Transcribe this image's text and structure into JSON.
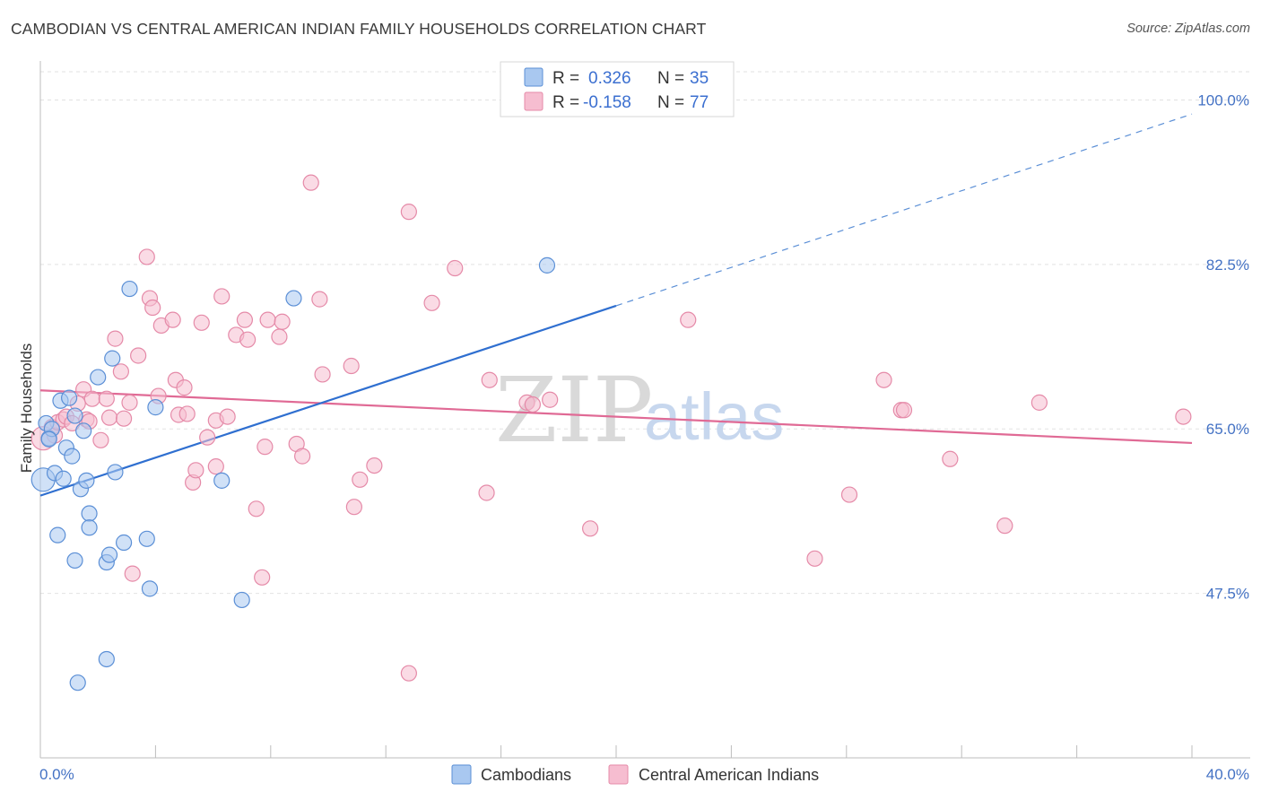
{
  "title": "CAMBODIAN VS CENTRAL AMERICAN INDIAN FAMILY HOUSEHOLDS CORRELATION CHART",
  "source": "Source: ZipAtlas.com",
  "watermark": {
    "zip": "ZIP",
    "atlas": "atlas"
  },
  "colors": {
    "blue_fill": "#a9c8f0",
    "blue_stroke": "#5b8fd6",
    "blue_line": "#2f6fd0",
    "pink_fill": "#f6bdd0",
    "pink_stroke": "#e58aa8",
    "pink_line": "#e06a95",
    "grid": "#e2e2e2",
    "axis_text": "#4472c4"
  },
  "legend": {
    "series": [
      {
        "r_label": "R =",
        "r_value": "0.326",
        "n_label": "N =",
        "n_value": "35"
      },
      {
        "r_label": "R =",
        "r_value": "-0.158",
        "n_label": "N =",
        "n_value": "77"
      }
    ]
  },
  "bottom_legend": [
    "Cambodians",
    "Central American Indians"
  ],
  "chart_data": {
    "type": "scatter",
    "title": "CAMBODIAN VS CENTRAL AMERICAN INDIAN FAMILY HOUSEHOLDS CORRELATION CHART",
    "xlabel": "",
    "ylabel": "Family Households",
    "xlim": [
      0,
      40
    ],
    "ylim": [
      30,
      103
    ],
    "x_tick_labels": [
      "0.0%",
      "40.0%"
    ],
    "y_ticks": [
      47.5,
      65.0,
      82.5,
      100.0
    ],
    "y_tick_labels": [
      "47.5%",
      "65.0%",
      "82.5%",
      "100.0%"
    ],
    "series": [
      {
        "name": "Cambodians",
        "points": [
          [
            0.1,
            59.6
          ],
          [
            0.2,
            65.6
          ],
          [
            0.3,
            64.0
          ],
          [
            0.4,
            65.0
          ],
          [
            0.5,
            60.3
          ],
          [
            0.6,
            53.7
          ],
          [
            0.7,
            68.0
          ],
          [
            0.8,
            59.7
          ],
          [
            0.9,
            63.0
          ],
          [
            1.0,
            68.3
          ],
          [
            1.1,
            62.1
          ],
          [
            1.2,
            66.4
          ],
          [
            1.2,
            51.0
          ],
          [
            1.3,
            38.0
          ],
          [
            1.4,
            58.6
          ],
          [
            1.5,
            64.8
          ],
          [
            1.6,
            59.5
          ],
          [
            1.7,
            56.0
          ],
          [
            1.7,
            54.5
          ],
          [
            2.0,
            70.5
          ],
          [
            2.3,
            50.8
          ],
          [
            2.3,
            40.5
          ],
          [
            2.4,
            51.6
          ],
          [
            2.5,
            72.5
          ],
          [
            2.6,
            60.4
          ],
          [
            2.9,
            52.9
          ],
          [
            3.1,
            79.9
          ],
          [
            3.7,
            53.3
          ],
          [
            3.8,
            48.0
          ],
          [
            4.0,
            67.3
          ],
          [
            6.3,
            59.5
          ],
          [
            7.0,
            46.8
          ],
          [
            8.8,
            78.9
          ],
          [
            17.6,
            82.4
          ],
          [
            0.3,
            63.9
          ]
        ],
        "trend": {
          "x0": 0,
          "y0": 57.9,
          "x1": 20,
          "y1": 78.1,
          "x_dash_end": 40,
          "y_dash_end": 98.5
        }
      },
      {
        "name": "Central American Indians",
        "points": [
          [
            0.1,
            64.0
          ],
          [
            0.4,
            65.2
          ],
          [
            0.5,
            64.3
          ],
          [
            0.6,
            65.7
          ],
          [
            0.8,
            66.0
          ],
          [
            0.9,
            66.3
          ],
          [
            1.1,
            65.6
          ],
          [
            1.3,
            67.7
          ],
          [
            1.5,
            69.2
          ],
          [
            1.6,
            66.0
          ],
          [
            1.7,
            65.8
          ],
          [
            1.8,
            68.2
          ],
          [
            2.1,
            63.8
          ],
          [
            2.3,
            68.2
          ],
          [
            2.4,
            66.2
          ],
          [
            2.6,
            74.6
          ],
          [
            2.8,
            71.1
          ],
          [
            2.9,
            66.1
          ],
          [
            3.1,
            67.8
          ],
          [
            3.2,
            49.6
          ],
          [
            3.4,
            72.8
          ],
          [
            3.7,
            83.3
          ],
          [
            3.8,
            78.9
          ],
          [
            3.9,
            77.9
          ],
          [
            4.1,
            68.5
          ],
          [
            4.2,
            76.0
          ],
          [
            4.6,
            76.6
          ],
          [
            4.7,
            70.2
          ],
          [
            4.8,
            66.5
          ],
          [
            5.0,
            69.4
          ],
          [
            5.1,
            66.6
          ],
          [
            5.3,
            59.3
          ],
          [
            5.4,
            60.6
          ],
          [
            5.6,
            76.3
          ],
          [
            5.8,
            64.1
          ],
          [
            6.1,
            61.0
          ],
          [
            6.1,
            65.9
          ],
          [
            6.3,
            79.1
          ],
          [
            6.5,
            66.3
          ],
          [
            6.8,
            75.0
          ],
          [
            7.1,
            76.6
          ],
          [
            7.2,
            74.5
          ],
          [
            7.5,
            56.5
          ],
          [
            7.7,
            49.2
          ],
          [
            7.8,
            63.1
          ],
          [
            7.9,
            76.6
          ],
          [
            8.3,
            74.8
          ],
          [
            8.4,
            76.4
          ],
          [
            8.9,
            63.4
          ],
          [
            9.1,
            62.1
          ],
          [
            9.4,
            91.2
          ],
          [
            9.7,
            78.8
          ],
          [
            9.8,
            70.8
          ],
          [
            10.8,
            71.7
          ],
          [
            10.9,
            56.7
          ],
          [
            11.1,
            59.6
          ],
          [
            11.6,
            61.1
          ],
          [
            12.8,
            39.0
          ],
          [
            12.8,
            88.1
          ],
          [
            13.6,
            78.4
          ],
          [
            14.4,
            82.1
          ],
          [
            15.5,
            58.2
          ],
          [
            15.6,
            70.2
          ],
          [
            16.9,
            67.8
          ],
          [
            17.1,
            67.6
          ],
          [
            17.7,
            68.1
          ],
          [
            19.1,
            54.4
          ],
          [
            22.5,
            76.6
          ],
          [
            26.9,
            51.2
          ],
          [
            28.1,
            58.0
          ],
          [
            29.3,
            70.2
          ],
          [
            29.9,
            67.0
          ],
          [
            30.0,
            67.0
          ],
          [
            31.6,
            61.8
          ],
          [
            33.5,
            54.7
          ],
          [
            34.7,
            67.8
          ],
          [
            39.7,
            66.3
          ]
        ],
        "trend": {
          "x0": 0,
          "y0": 69.1,
          "x1": 40,
          "y1": 63.5
        }
      }
    ]
  }
}
